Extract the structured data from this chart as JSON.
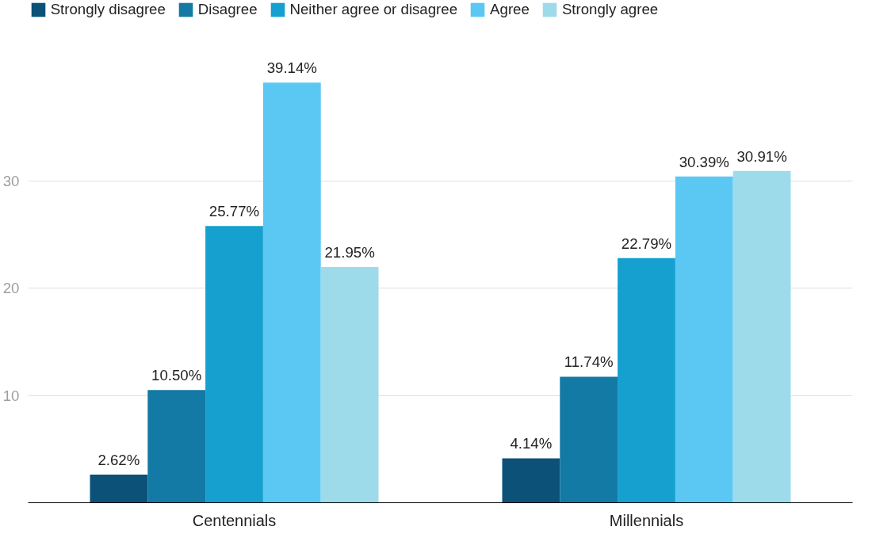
{
  "chart_data": {
    "type": "bar",
    "categories": [
      "Centennials",
      "Millennials"
    ],
    "series": [
      {
        "name": "Strongly disagree",
        "color": "#0b5178",
        "values": [
          2.62,
          4.14
        ],
        "value_labels": [
          "2.62%",
          "4.14%"
        ]
      },
      {
        "name": "Disagree",
        "color": "#1379a5",
        "values": [
          10.5,
          11.74
        ],
        "value_labels": [
          "10.50%",
          "11.74%"
        ]
      },
      {
        "name": "Neither agree or disagree",
        "color": "#15a0cf",
        "values": [
          25.77,
          22.79
        ],
        "value_labels": [
          "25.77%",
          "22.79%"
        ]
      },
      {
        "name": "Agree",
        "color": "#5bc8f4",
        "values": [
          39.14,
          30.39
        ],
        "value_labels": [
          "39.14%",
          "30.39%"
        ]
      },
      {
        "name": "Strongly agree",
        "color": "#9ddbeb",
        "values": [
          21.95,
          30.91
        ],
        "value_labels": [
          "21.95%",
          "30.91%"
        ]
      }
    ],
    "ylim": [
      0,
      46.5
    ],
    "yticks": [
      10,
      20,
      30
    ],
    "grid": "y",
    "legend": "top left"
  }
}
